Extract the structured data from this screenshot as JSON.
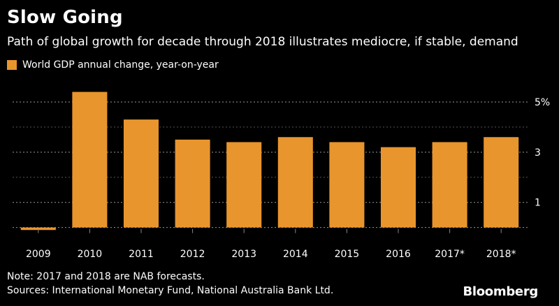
{
  "title": "Slow Going",
  "subtitle": "Path of global growth for decade through 2018 illustrates mediocre, if stable, demand",
  "legend": {
    "label": "World GDP annual change, year-on-year"
  },
  "note": "Note: 2017 and 2018 are NAB forecasts.",
  "source": "Sources: International Monetary Fund, National Australia Bank Ltd.",
  "brand": "Bloomberg",
  "colors": {
    "bar": "#E8952E",
    "grid": "#9a9a9a",
    "background": "#000000"
  },
  "chart_data": {
    "type": "bar",
    "title": "Slow Going",
    "xlabel": "",
    "ylabel": "",
    "categories": [
      "2009",
      "2010",
      "2011",
      "2012",
      "2013",
      "2014",
      "2015",
      "2016",
      "2017*",
      "2018*"
    ],
    "series": [
      {
        "name": "World GDP annual change, year-on-year",
        "values": [
          -0.1,
          5.4,
          4.3,
          3.5,
          3.4,
          3.6,
          3.4,
          3.2,
          3.4,
          3.6
        ]
      }
    ],
    "yticks": [
      1,
      3,
      5
    ],
    "ytick_labels": [
      "1",
      "3",
      "5%"
    ],
    "ylim": [
      -0.4,
      6.0
    ],
    "grid": true,
    "y_axis_side": "right",
    "legend_position": "top-left"
  }
}
